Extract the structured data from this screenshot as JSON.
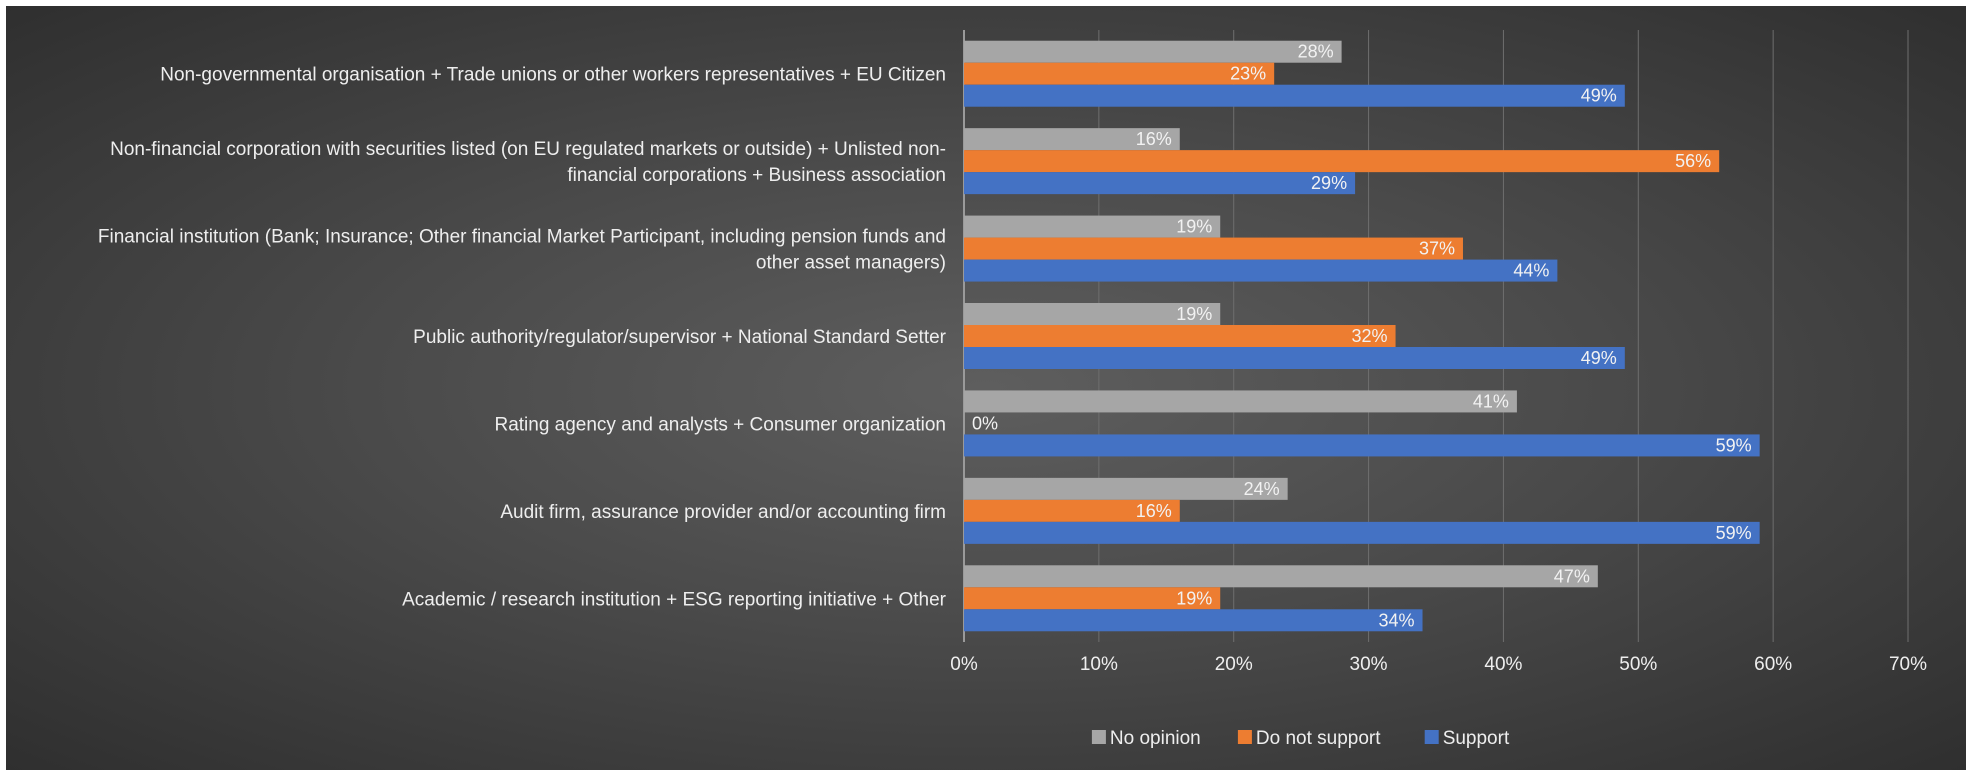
{
  "chart_data": {
    "type": "bar",
    "orientation": "horizontal",
    "categories": [
      [
        "Non-governmental organisation + Trade unions or other workers representatives + EU Citizen"
      ],
      [
        "Non-financial corporation with securities listed (on EU regulated markets or outside) + Unlisted non-",
        "financial corporations + Business association"
      ],
      [
        "Financial institution (Bank; Insurance; Other financial Market Participant, including pension funds and",
        "other asset managers)"
      ],
      [
        "Public authority/regulator/supervisor + National Standard Setter"
      ],
      [
        "Rating agency and analysts + Consumer organization"
      ],
      [
        "Audit firm, assurance provider and/or accounting firm"
      ],
      [
        "Academic / research institution + ESG reporting initiative + Other"
      ]
    ],
    "series": [
      {
        "name": "No opinion",
        "color": "#a6a6a6",
        "values": [
          0.28,
          0.16,
          0.19,
          0.19,
          0.41,
          0.24,
          0.47
        ],
        "labels": [
          "28%",
          "16%",
          "19%",
          "19%",
          "41%",
          "24%",
          "47%"
        ]
      },
      {
        "name": "Do not support",
        "color": "#ed7d31",
        "values": [
          0.23,
          0.56,
          0.37,
          0.32,
          0.0,
          0.16,
          0.19
        ],
        "labels": [
          "23%",
          "56%",
          "37%",
          "32%",
          "0%",
          "16%",
          "19%"
        ]
      },
      {
        "name": "Support",
        "color": "#4472c4",
        "values": [
          0.49,
          0.29,
          0.44,
          0.49,
          0.59,
          0.59,
          0.34
        ],
        "labels": [
          "49%",
          "29%",
          "44%",
          "49%",
          "59%",
          "59%",
          "34%"
        ]
      }
    ],
    "xlim": [
      0,
      0.7
    ],
    "ticks": [
      0,
      0.1,
      0.2,
      0.3,
      0.4,
      0.5,
      0.6,
      0.7
    ],
    "tick_labels": [
      "0%",
      "10%",
      "20%",
      "30%",
      "40%",
      "50%",
      "60%",
      "70%"
    ],
    "grid": true,
    "legend_position": "bottom",
    "colors": {
      "gridline": "#6e6e6e",
      "axis": "#9a9a9a",
      "text": "#eeeeee"
    }
  }
}
